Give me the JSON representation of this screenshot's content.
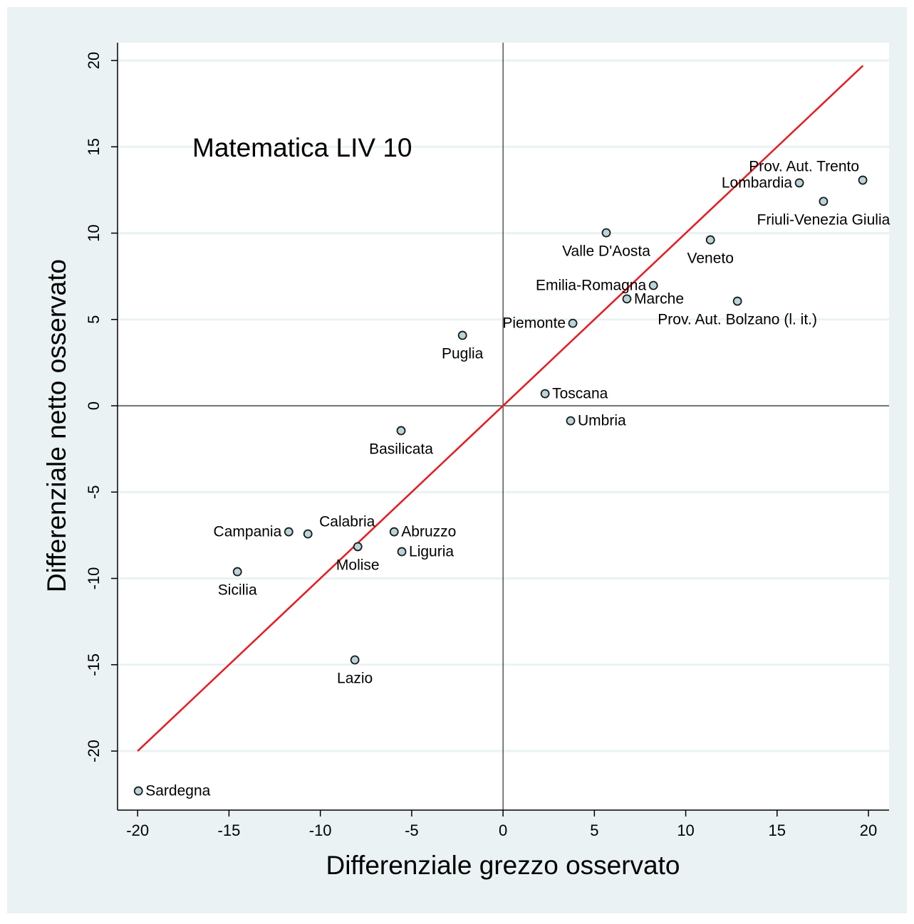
{
  "chart_data": {
    "type": "scatter",
    "title": "Matematica LIV 10",
    "x_label": "Differenziale grezzo osservato",
    "y_label": "Differenziale netto osservato",
    "labels": [
      "Sardegna",
      "Lazio",
      "Sicilia",
      "Campania",
      "Calabria",
      "Molise",
      "Abruzzo",
      "Liguria",
      "Basilicata",
      "Puglia",
      "Piemonte",
      "Toscana",
      "Umbria",
      "Valle D'Aosta",
      "Emilia-Romagna",
      "Marche",
      "Prov. Aut. Bolzano (l. it.)",
      "Veneto",
      "Lombardia",
      "Friuli-Venezia Giulia",
      "Prov. Aut. Trento"
    ],
    "x": [
      -19.96,
      -8.11,
      -14.54,
      -11.73,
      -10.68,
      -7.95,
      -5.96,
      -5.54,
      -5.58,
      -2.22,
      3.82,
      2.3,
      3.7,
      5.65,
      8.23,
      6.78,
      12.83,
      11.35,
      16.22,
      17.54,
      19.69
    ],
    "y": [
      -22.31,
      -14.72,
      -9.61,
      -7.3,
      -7.42,
      -8.16,
      -7.3,
      -8.45,
      -1.44,
      4.08,
      4.78,
      0.7,
      -0.87,
      10.02,
      6.97,
      6.19,
      6.06,
      9.61,
      12.91,
      11.84,
      13.07
    ],
    "label_position": [
      "right",
      "below",
      "below",
      "left",
      "above",
      "below",
      "right",
      "right",
      "below",
      "below",
      "left",
      "right",
      "right",
      "below",
      "left",
      "right",
      "below",
      "below",
      "left",
      "below",
      "above-left"
    ],
    "marker_color": "#b9d5da",
    "fit_line": {
      "x": [
        -20,
        19.7
      ],
      "y": [
        -20,
        19.7
      ],
      "color": "#e8191f"
    },
    "xlim": [
      -21.1,
      21.13
    ],
    "ylim": [
      -23.42,
      21.03
    ],
    "xticks": [
      -20,
      -15,
      -10,
      -5,
      0,
      5,
      10,
      15,
      20
    ],
    "yticks": [
      -20,
      -15,
      -10,
      -5,
      0,
      5,
      10,
      15,
      20
    ],
    "grid": true
  }
}
